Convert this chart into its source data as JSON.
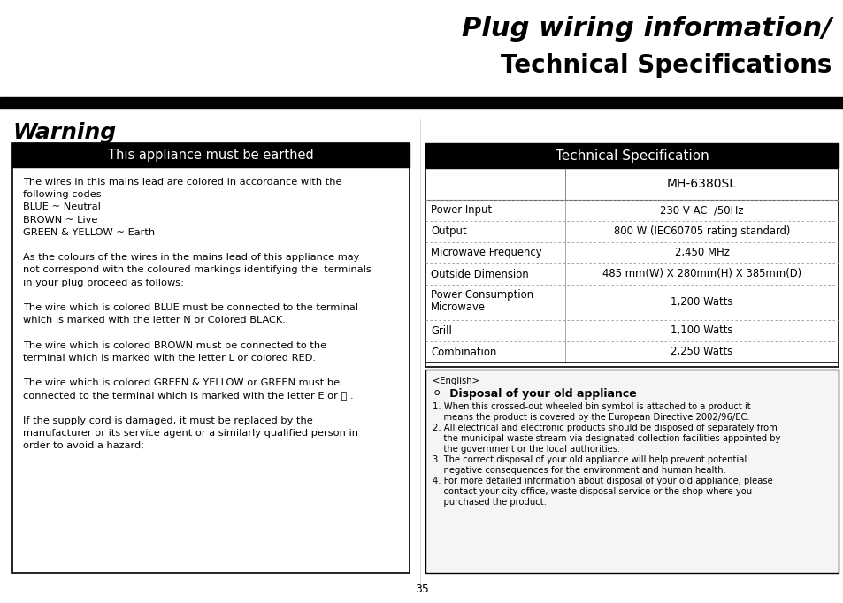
{
  "title_line1": "Plug wiring information/",
  "title_line2": "Technical Specifications",
  "warning_title": "Warning",
  "warning_box_header": "This appliance must be earthed",
  "warning_text": [
    "The wires in this mains lead are colored in accordance with the",
    "following codes",
    "BLUE ~ Neutral",
    "BROWN ~ Live",
    "GREEN & YELLOW ~ Earth",
    "",
    "As the colours of the wires in the mains lead of this appliance may",
    "not correspond with the coloured markings identifying the  terminals",
    "in your plug proceed as follows:",
    "",
    "The wire which is colored BLUE must be connected to the terminal",
    "which is marked with the letter N or Colored BLACK.",
    "",
    "The wire which is colored BROWN must be connected to the",
    "terminal which is marked with the letter L or colored RED.",
    "",
    "The wire which is colored GREEN & YELLOW or GREEN must be",
    "connected to the terminal which is marked with the letter E or ⏚ .",
    "",
    "If the supply cord is damaged, it must be replaced by the",
    "manufacturer or its service agent or a similarly qualified person in",
    "order to avoid a hazard;"
  ],
  "tech_spec_header": "Technical Specification",
  "tech_spec_model": "MH-6380SL",
  "tech_spec_rows": [
    [
      "Power Input",
      "230 V AC  /50Hz"
    ],
    [
      "Output",
      "800 W (IEC60705 rating standard)"
    ],
    [
      "Microwave Frequency",
      "2,450 MHz"
    ],
    [
      "Outside Dimension",
      "485 mm(W) X 280mm(H) X 385mm(D)"
    ],
    [
      "Power Consumption\nMicrowave",
      "1,200 Watts"
    ],
    [
      "Grill",
      "1,100 Watts"
    ],
    [
      "Combination",
      "2,250 Watts"
    ]
  ],
  "disposal_box_text": [
    "<English>",
    "⚪  Disposal of your old appliance",
    "1. When this crossed-out wheeled bin symbol is attached to a product it",
    "    means the product is covered by the European Directive 2002/96/EC.",
    "2. All electrical and electronic products should be disposed of separately from",
    "    the municipal waste stream via designated collection facilities appointed by",
    "    the government or the local authorities.",
    "3. The correct disposal of your old appliance will help prevent potential",
    "    negative consequences for the environment and human health.",
    "4. For more detailed information about disposal of your old appliance, please",
    "    contact your city office, waste disposal service or the shop where you",
    "    purchased the product."
  ],
  "page_number": "35",
  "bg_color": "#ffffff",
  "header_bg": "#000000",
  "header_fg": "#ffffff",
  "box_border": "#000000",
  "text_color": "#000000",
  "title_color": "#000000"
}
